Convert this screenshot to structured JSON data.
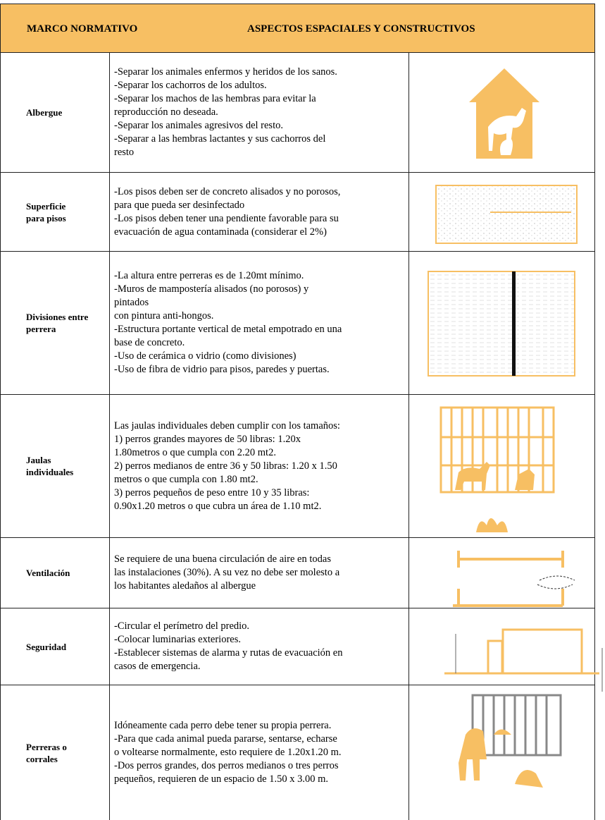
{
  "header": {
    "col1": "MARCO NORMATIVO",
    "col2": "ASPECTOS ESPACIALES Y CONSTRUCTIVOS"
  },
  "rows": [
    {
      "label": [
        "Albergue"
      ],
      "lines": [
        "-Separar los animales enfermos y heridos de los sanos.",
        "-Separar los cachorros de los adultos.",
        "-Separar los machos de las hembras para evitar la",
        "reproducción no deseada.",
        "-Separar los animales agresivos del resto.",
        "-Separar a las hembras lactantes y sus cachorros del",
        "resto"
      ]
    },
    {
      "label": [
        "Superficie",
        "para pisos"
      ],
      "lines": [
        "-Los pisos deben ser de concreto alisados y no porosos,",
        "para que pueda ser desinfectado",
        "-Los pisos deben tener una pendiente favorable para su",
        "evacuación de agua contaminada (considerar el 2%)"
      ]
    },
    {
      "label": [
        "Divisiones entre",
        "perrera"
      ],
      "lines": [
        "-La altura entre perreras es de 1.20mt mínimo.",
        "-Muros de mampostería alisados (no porosos) y",
        "pintados",
        "con pintura anti-hongos.",
        "-Estructura portante vertical de metal empotrado en una",
        "base de concreto.",
        "-Uso de cerámica o vidrio (como divisiones)",
        "-Uso de fibra de vidrio para pisos, paredes y puertas."
      ]
    },
    {
      "label": [
        "Jaulas",
        "individuales"
      ],
      "lines": [
        "Las jaulas individuales deben cumplir con los tamaños:",
        "1) perros grandes mayores de 50 libras: 1.20x",
        "1.80metros o que cumpla con 2.20 mt2.",
        "2) perros medianos de entre 36 y 50 libras: 1.20 x 1.50",
        "metros o que cumpla con 1.80 mt2.",
        "3) perros pequeños de peso entre 10 y 35 libras:",
        "0.90x1.20 metros o que cubra un área de 1.10 mt2."
      ]
    },
    {
      "label": [
        "Ventilación"
      ],
      "lines": [
        "Se requiere de una buena circulación de aire en todas",
        "las instalaciones (30%). A su vez no debe ser molesto a",
        "los habitantes aledaños al albergue"
      ]
    },
    {
      "label": [
        "Seguridad"
      ],
      "lines": [
        "-Circular el perímetro del predio.",
        "-Colocar luminarias exteriores.",
        "-Establecer sistemas de alarma y rutas de evacuación en",
        "casos de emergencia."
      ]
    },
    {
      "label": [
        "Perreras o",
        "corrales"
      ],
      "lines": [
        "Idóneamente cada perro debe tener su propia perrera.",
        "-Para que cada animal pueda pararse, sentarse, echarse",
        "o voltearse normalmente, esto requiere de 1.20x1.20 m.",
        "-Dos perros grandes, dos perros medianos o tres perros",
        "pequeños, requieren de un espacio de 1.50 x 3.00 m."
      ]
    }
  ]
}
